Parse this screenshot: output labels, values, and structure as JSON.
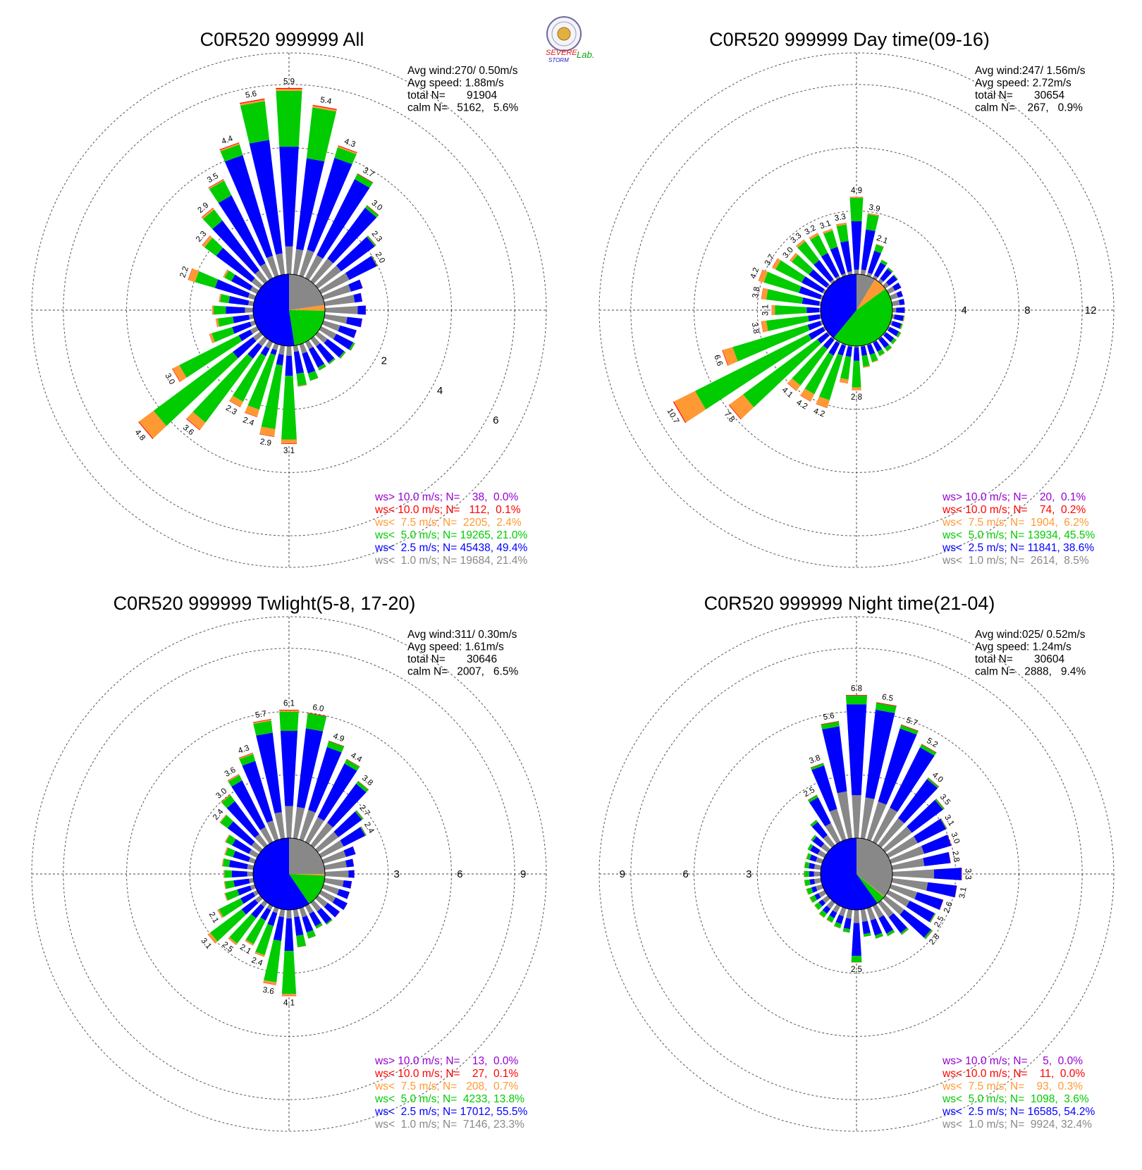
{
  "logo": {
    "line1": "SEVERE",
    "line2": "STORM",
    "line3": "Lab."
  },
  "colors": {
    "gt10": "#9400d3",
    "lt10": "#ff0000",
    "lt7_5": "#ff9933",
    "lt5": "#00cc00",
    "lt2_5": "#0000ff",
    "lt1": "#888888"
  },
  "chart_data": [
    {
      "type": "windrose",
      "title": "C0R520 999999 All",
      "stats": [
        "Avg wind:270/ 0.50m/s",
        "Avg speed: 1.88m/s",
        "total N=       91904",
        "calm N=   5162,   5.6%"
      ],
      "legend": [
        {
          "text": "ws> 10.0 m/s; N=    38,  0.0%",
          "color": "#9400d3"
        },
        {
          "text": "ws< 10.0 m/s; N=   112,  0.1%",
          "color": "#ff0000"
        },
        {
          "text": "ws<  7.5 m/s; N=  2205,  2.4%",
          "color": "#ff9933"
        },
        {
          "text": "ws<  5.0 m/s; N= 19265, 21.0%",
          "color": "#00cc00"
        },
        {
          "text": "ws<  2.5 m/s; N= 45438, 49.4%",
          "color": "#0000ff"
        },
        {
          "text": "ws<  1.0 m/s; N= 19684, 21.4%",
          "color": "#888888"
        }
      ],
      "ring_values": [
        2,
        4,
        6
      ],
      "ring_label_side": "diagonal",
      "rmax": 7,
      "calm_pie": {
        "gray": 21.4,
        "orange": 2.4,
        "green": 21.0,
        "blue": 49.4
      },
      "directions": [
        0,
        10,
        20,
        30,
        40,
        50,
        60,
        70,
        80,
        90,
        100,
        110,
        120,
        130,
        140,
        150,
        160,
        170,
        180,
        190,
        200,
        210,
        220,
        230,
        240,
        250,
        260,
        270,
        280,
        290,
        300,
        310,
        320,
        330,
        340,
        350
      ],
      "totals": [
        5.9,
        5.4,
        4.3,
        3.7,
        3.0,
        2.3,
        2.0,
        1.3,
        1.2,
        1.3,
        1.2,
        1.1,
        1.2,
        1.1,
        1.0,
        1.0,
        1.2,
        1.3,
        3.1,
        2.9,
        2.4,
        2.3,
        3.6,
        4.8,
        3.0,
        1.5,
        1.2,
        1.3,
        1.1,
        2.2,
        1.2,
        2.3,
        2.9,
        3.5,
        4.4,
        5.6
      ],
      "labels": [
        "5.9",
        "5.4",
        "4.3",
        "3.7",
        "3.0",
        "2.3",
        "2.0",
        "",
        "",
        "",
        "",
        "",
        "",
        "",
        "",
        "",
        "",
        "",
        "3.1",
        "2.9",
        "2.4",
        "2.3",
        "3.6",
        "4.8",
        "3.0",
        "",
        "",
        "",
        "",
        "2.2",
        "",
        "2.3",
        "2.9",
        "3.5",
        "4.4",
        "5.6"
      ],
      "green_frac": [
        0.3,
        0.3,
        0.08,
        0.05,
        0.03,
        0.02,
        0.01,
        0,
        0,
        0,
        0,
        0,
        0.05,
        0.05,
        0.05,
        0.1,
        0.2,
        0.3,
        0.65,
        0.7,
        0.75,
        0.7,
        0.7,
        0.65,
        0.7,
        0.45,
        0.4,
        0.3,
        0.25,
        0.3,
        0.2,
        0.2,
        0.15,
        0.15,
        0.08,
        0.22
      ],
      "orange_frac": [
        0.01,
        0.01,
        0.01,
        0,
        0,
        0,
        0,
        0,
        0,
        0,
        0,
        0,
        0,
        0,
        0,
        0,
        0,
        0.01,
        0.04,
        0.08,
        0.1,
        0.08,
        0.08,
        0.12,
        0.08,
        0.05,
        0.05,
        0.03,
        0.03,
        0.1,
        0.04,
        0.04,
        0.02,
        0.01,
        0.01,
        0.01
      ],
      "gray_frac": [
        0.15,
        0.15,
        0.2,
        0.22,
        0.3,
        0.4,
        0.5,
        0.7,
        0.8,
        0.8,
        0.6,
        0.5,
        0.45,
        0.35,
        0.3,
        0.25,
        0.25,
        0.15,
        0.1,
        0.1,
        0.08,
        0.1,
        0.08,
        0.06,
        0.08,
        0.1,
        0.12,
        0.2,
        0.15,
        0.1,
        0.2,
        0.15,
        0.15,
        0.15,
        0.15,
        0.12
      ]
    },
    {
      "type": "windrose",
      "title": "C0R520 999999 Day time(09-16)",
      "stats": [
        "Avg wind:247/ 1.56m/s",
        "Avg speed: 2.72m/s",
        "total N=       30654",
        "calm N=    267,   0.9%"
      ],
      "legend": [
        {
          "text": "ws> 10.0 m/s; N=    20,  0.1%",
          "color": "#9400d3"
        },
        {
          "text": "ws< 10.0 m/s; N=    74,  0.2%",
          "color": "#ff0000"
        },
        {
          "text": "ws<  7.5 m/s; N=  1904,  6.2%",
          "color": "#ff9933"
        },
        {
          "text": "ws<  5.0 m/s; N= 13934, 45.5%",
          "color": "#00cc00"
        },
        {
          "text": "ws<  2.5 m/s; N= 11841, 38.6%",
          "color": "#0000ff"
        },
        {
          "text": "ws<  1.0 m/s; N=  2614,  8.5%",
          "color": "#888888"
        }
      ],
      "ring_values": [
        4,
        8,
        12
      ],
      "ring_label_side": "right",
      "rmax": 14,
      "calm_pie": {
        "gray": 8.5,
        "orange": 6.2,
        "green": 45.5,
        "blue": 38.6
      },
      "directions": [
        0,
        10,
        20,
        30,
        40,
        50,
        60,
        70,
        80,
        90,
        100,
        110,
        120,
        130,
        140,
        150,
        160,
        170,
        180,
        190,
        200,
        210,
        220,
        230,
        240,
        250,
        260,
        270,
        280,
        290,
        300,
        310,
        320,
        330,
        340,
        350
      ],
      "totals": [
        4.9,
        3.9,
        2.1,
        1.3,
        1.1,
        1.0,
        0.9,
        0.8,
        0.8,
        0.8,
        0.8,
        0.8,
        0.9,
        0.9,
        1.0,
        1.0,
        1.2,
        1.4,
        2.8,
        2.4,
        4.2,
        4.2,
        4.1,
        7.8,
        10.7,
        6.6,
        3.8,
        3.1,
        3.8,
        4.2,
        3.7,
        3.0,
        3.3,
        3.2,
        3.1,
        3.3
      ],
      "labels": [
        "4.9",
        "3.9",
        "2.1",
        "",
        "",
        "",
        "",
        "",
        "",
        "",
        "",
        "",
        "",
        "",
        "",
        "",
        "",
        "",
        "2.8",
        "",
        "4.2",
        "4.2",
        "4.1",
        "7.8",
        "10.7",
        "6.6",
        "3.8",
        "3.1",
        "3.8",
        "4.2",
        "3.7",
        "3.0",
        "3.3",
        "3.2",
        "3.1",
        "3.3"
      ],
      "green_frac": [
        0.3,
        0.25,
        0.2,
        0.15,
        0.1,
        0.05,
        0,
        0,
        0,
        0,
        0.05,
        0.1,
        0.15,
        0.2,
        0.25,
        0.3,
        0.4,
        0.5,
        0.6,
        0.6,
        0.7,
        0.65,
        0.7,
        0.75,
        0.75,
        0.75,
        0.7,
        0.65,
        0.6,
        0.55,
        0.5,
        0.45,
        0.45,
        0.4,
        0.35,
        0.32
      ],
      "orange_frac": [
        0.01,
        0.01,
        0.01,
        0,
        0,
        0,
        0,
        0,
        0,
        0.02,
        0.03,
        0.03,
        0.03,
        0.03,
        0.03,
        0.03,
        0.03,
        0.04,
        0.06,
        0.1,
        0.12,
        0.12,
        0.1,
        0.14,
        0.14,
        0.1,
        0.08,
        0.06,
        0.08,
        0.08,
        0.06,
        0.05,
        0.04,
        0.04,
        0.03,
        0.03
      ],
      "gray_frac": [
        0.06,
        0.08,
        0.1,
        0.15,
        0.2,
        0.3,
        0.5,
        0.6,
        0.6,
        0.3,
        0.2,
        0.15,
        0.1,
        0.08,
        0.06,
        0.05,
        0.05,
        0.04,
        0.03,
        0.03,
        0.02,
        0.02,
        0.02,
        0.01,
        0.01,
        0.02,
        0.02,
        0.03,
        0.03,
        0.03,
        0.04,
        0.04,
        0.05,
        0.05,
        0.05,
        0.06
      ]
    },
    {
      "type": "windrose",
      "title": "C0R520 999999 Twlight(5-8, 17-20)",
      "stats": [
        "Avg wind:311/ 0.30m/s",
        "Avg speed: 1.61m/s",
        "total N=       30646",
        "calm N=   2007,   6.5%"
      ],
      "legend": [
        {
          "text": "ws> 10.0 m/s; N=    13,  0.0%",
          "color": "#9400d3"
        },
        {
          "text": "ws< 10.0 m/s; N=    27,  0.1%",
          "color": "#ff0000"
        },
        {
          "text": "ws<  7.5 m/s; N=   208,  0.7%",
          "color": "#ff9933"
        },
        {
          "text": "ws<  5.0 m/s; N=  4233, 13.8%",
          "color": "#00cc00"
        },
        {
          "text": "ws<  2.5 m/s; N= 17012, 55.5%",
          "color": "#0000ff"
        },
        {
          "text": "ws<  1.0 m/s; N=  7146, 23.3%",
          "color": "#888888"
        }
      ],
      "ring_values": [
        3,
        6,
        9
      ],
      "ring_label_side": "right",
      "rmax": 10.5,
      "calm_pie": {
        "gray": 23.3,
        "orange": 0.7,
        "green": 13.8,
        "blue": 55.5
      },
      "directions": [
        0,
        10,
        20,
        30,
        40,
        50,
        60,
        70,
        80,
        90,
        100,
        110,
        120,
        130,
        140,
        150,
        160,
        170,
        180,
        190,
        200,
        210,
        220,
        230,
        240,
        250,
        260,
        270,
        280,
        290,
        300,
        310,
        320,
        330,
        340,
        350
      ],
      "totals": [
        6.1,
        6.0,
        4.9,
        4.4,
        3.8,
        2.7,
        2.4,
        1.6,
        1.4,
        1.4,
        1.3,
        1.3,
        1.4,
        1.3,
        1.3,
        1.2,
        1.5,
        1.8,
        4.1,
        3.6,
        2.4,
        2.1,
        2.5,
        3.1,
        2.1,
        1.5,
        1.4,
        1.4,
        1.5,
        1.5,
        1.7,
        2.4,
        3.0,
        3.6,
        4.3,
        5.7
      ],
      "labels": [
        "6.1",
        "6.0",
        "4.9",
        "4.4",
        "3.8",
        "2.7",
        "2.4",
        "",
        "",
        "",
        "",
        "",
        "",
        "",
        "",
        "",
        "",
        "",
        "4.1",
        "3.6",
        "2.4",
        "2.1",
        "2.5",
        "3.1",
        "2.1",
        "",
        "",
        "",
        "",
        "",
        "",
        "2.4",
        "3.0",
        "3.6",
        "4.3",
        "5.7"
      ],
      "green_frac": [
        0.15,
        0.12,
        0.06,
        0.05,
        0.04,
        0.03,
        0.02,
        0,
        0,
        0,
        0,
        0,
        0,
        0,
        0.05,
        0.1,
        0.2,
        0.3,
        0.5,
        0.55,
        0.6,
        0.6,
        0.6,
        0.6,
        0.55,
        0.4,
        0.3,
        0.25,
        0.2,
        0.25,
        0.2,
        0.18,
        0.12,
        0.08,
        0.08,
        0.1
      ],
      "orange_frac": [
        0.01,
        0,
        0,
        0,
        0,
        0,
        0,
        0,
        0,
        0,
        0,
        0,
        0,
        0,
        0,
        0,
        0,
        0,
        0.02,
        0.03,
        0.03,
        0.03,
        0.03,
        0.04,
        0.03,
        0.02,
        0.02,
        0.02,
        0.02,
        0.03,
        0.02,
        0.01,
        0.01,
        0.01,
        0.01,
        0.01
      ],
      "gray_frac": [
        0.25,
        0.25,
        0.3,
        0.3,
        0.35,
        0.45,
        0.5,
        0.7,
        0.75,
        0.8,
        0.7,
        0.6,
        0.55,
        0.45,
        0.4,
        0.35,
        0.3,
        0.2,
        0.1,
        0.1,
        0.1,
        0.1,
        0.1,
        0.1,
        0.1,
        0.15,
        0.15,
        0.2,
        0.2,
        0.2,
        0.25,
        0.22,
        0.22,
        0.22,
        0.22,
        0.22
      ]
    },
    {
      "type": "windrose",
      "title": "C0R520 999999 Night time(21-04)",
      "stats": [
        "Avg wind:025/ 0.52m/s",
        "Avg speed: 1.24m/s",
        "total N=       30604",
        "calm N=   2888,   9.4%"
      ],
      "legend": [
        {
          "text": "ws> 10.0 m/s; N=     5,  0.0%",
          "color": "#9400d3"
        },
        {
          "text": "ws< 10.0 m/s; N=    11,  0.0%",
          "color": "#ff0000"
        },
        {
          "text": "ws<  7.5 m/s; N=    93,  0.3%",
          "color": "#ff9933"
        },
        {
          "text": "ws<  5.0 m/s; N=  1098,  3.6%",
          "color": "#00cc00"
        },
        {
          "text": "ws<  2.5 m/s; N= 16585, 54.2%",
          "color": "#0000ff"
        },
        {
          "text": "ws<  1.0 m/s; N=  9924, 32.4%",
          "color": "#888888"
        }
      ],
      "ring_values": [
        3,
        6,
        9
      ],
      "ring_label_side": "left",
      "rmax": 10.5,
      "calm_pie": {
        "gray": 32.4,
        "orange": 0.3,
        "green": 3.6,
        "blue": 54.2
      },
      "directions": [
        0,
        10,
        20,
        30,
        40,
        50,
        60,
        70,
        80,
        90,
        100,
        110,
        120,
        130,
        140,
        150,
        160,
        170,
        180,
        190,
        200,
        210,
        220,
        230,
        240,
        250,
        260,
        270,
        280,
        290,
        300,
        310,
        320,
        330,
        340,
        350
      ],
      "totals": [
        6.8,
        6.5,
        5.7,
        5.2,
        4.0,
        3.5,
        3.1,
        3.0,
        2.8,
        3.3,
        3.1,
        2.6,
        2.5,
        2.8,
        1.9,
        1.6,
        1.5,
        1.3,
        2.5,
        1.1,
        1.0,
        0.9,
        0.9,
        0.8,
        0.8,
        0.8,
        0.8,
        0.8,
        0.8,
        0.8,
        0.9,
        1.0,
        1.5,
        2.5,
        3.8,
        5.6
      ],
      "labels": [
        "6.8",
        "6.5",
        "5.7",
        "5.2",
        "4.0",
        "3.5",
        "3.1",
        "3.0",
        "2.8",
        "3.3",
        "3.1",
        "2.6",
        "2.5",
        "2.8",
        "",
        "",
        "",
        "",
        "2.5",
        "",
        "",
        "",
        "",
        "",
        "",
        "",
        "",
        "",
        "",
        "",
        "",
        "",
        "",
        "2.5",
        "3.8",
        "5.6"
      ],
      "green_frac": [
        0.06,
        0.05,
        0.03,
        0.03,
        0.02,
        0.02,
        0.01,
        0,
        0,
        0,
        0,
        0,
        0.02,
        0.03,
        0.05,
        0.08,
        0.1,
        0.1,
        0.12,
        0.15,
        0.2,
        0.25,
        0.25,
        0.3,
        0.3,
        0.3,
        0.3,
        0.3,
        0.25,
        0.2,
        0.15,
        0.1,
        0.08,
        0.05,
        0.03,
        0.04
      ],
      "orange_frac": [
        0,
        0,
        0,
        0,
        0,
        0,
        0,
        0,
        0,
        0,
        0,
        0,
        0,
        0,
        0,
        0,
        0,
        0,
        0,
        0,
        0.02,
        0.03,
        0.03,
        0.03,
        0.03,
        0.03,
        0.02,
        0.02,
        0.02,
        0.02,
        0,
        0,
        0,
        0,
        0,
        0
      ],
      "gray_frac": [
        0.3,
        0.3,
        0.33,
        0.35,
        0.4,
        0.45,
        0.5,
        0.55,
        0.55,
        0.6,
        0.55,
        0.5,
        0.45,
        0.4,
        0.45,
        0.4,
        0.4,
        0.45,
        0.25,
        0.4,
        0.4,
        0.4,
        0.4,
        0.4,
        0.4,
        0.4,
        0.4,
        0.4,
        0.4,
        0.4,
        0.4,
        0.4,
        0.4,
        0.4,
        0.4,
        0.4
      ]
    }
  ]
}
